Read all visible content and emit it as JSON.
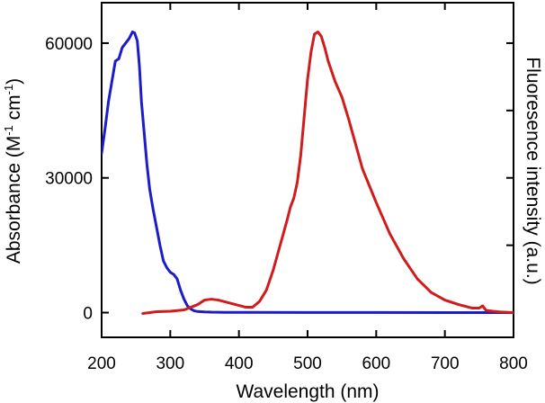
{
  "chart_data": {
    "type": "line",
    "title": "",
    "xlabel": "Wavelength (nm)",
    "ylabel_left": {
      "prefix": "Absorbance (M",
      "sup1": "-1",
      "middle": " cm",
      "sup2": "-1",
      "suffix": ")"
    },
    "ylabel_right": "Fluoresence intensity (a.u.)",
    "xlim": [
      200,
      800
    ],
    "ylim": [
      -5500,
      69000
    ],
    "x_ticks": [
      200,
      300,
      400,
      500,
      600,
      700,
      800
    ],
    "y_ticks": [
      0,
      30000,
      60000
    ],
    "grid": false,
    "series": [
      {
        "name": "Absorbance",
        "axis": "left",
        "color": "#1c1cc8",
        "x": [
          200,
          205,
          210,
          215,
          220,
          225,
          230,
          235,
          240,
          245,
          248,
          252,
          255,
          258,
          262,
          266,
          270,
          275,
          280,
          285,
          290,
          295,
          300,
          305,
          310,
          315,
          320,
          325,
          330,
          335,
          340,
          350,
          360,
          380,
          420,
          500,
          600,
          700,
          800
        ],
        "y": [
          35500,
          41000,
          47000,
          51500,
          56000,
          56500,
          59000,
          60000,
          61000,
          62500,
          62300,
          60500,
          55000,
          47000,
          40000,
          33000,
          27500,
          23000,
          19000,
          15000,
          11500,
          10000,
          9000,
          8500,
          7500,
          5000,
          3000,
          1500,
          800,
          400,
          250,
          150,
          100,
          70,
          50,
          40,
          30,
          20,
          15
        ]
      },
      {
        "name": "Fluorescence",
        "axis": "right",
        "color": "#d01c1c",
        "x": [
          260,
          270,
          280,
          300,
          320,
          340,
          350,
          360,
          370,
          380,
          390,
          400,
          410,
          420,
          430,
          440,
          450,
          460,
          470,
          475,
          480,
          485,
          490,
          495,
          500,
          505,
          510,
          515,
          520,
          525,
          530,
          540,
          550,
          560,
          570,
          580,
          600,
          620,
          640,
          660,
          680,
          700,
          720,
          740,
          750,
          755,
          760,
          770,
          780,
          790,
          800
        ],
        "y": [
          -200,
          0,
          200,
          300,
          600,
          1800,
          2800,
          3000,
          2800,
          2400,
          2000,
          1600,
          1200,
          1200,
          2500,
          5000,
          9500,
          15000,
          20500,
          23500,
          25500,
          29000,
          35000,
          43500,
          52000,
          58000,
          62000,
          62500,
          61500,
          59000,
          56000,
          51500,
          48000,
          43000,
          37500,
          32000,
          24500,
          17500,
          12000,
          7500,
          4500,
          2800,
          1800,
          1000,
          1000,
          1500,
          500,
          300,
          150,
          80,
          0
        ]
      }
    ]
  }
}
